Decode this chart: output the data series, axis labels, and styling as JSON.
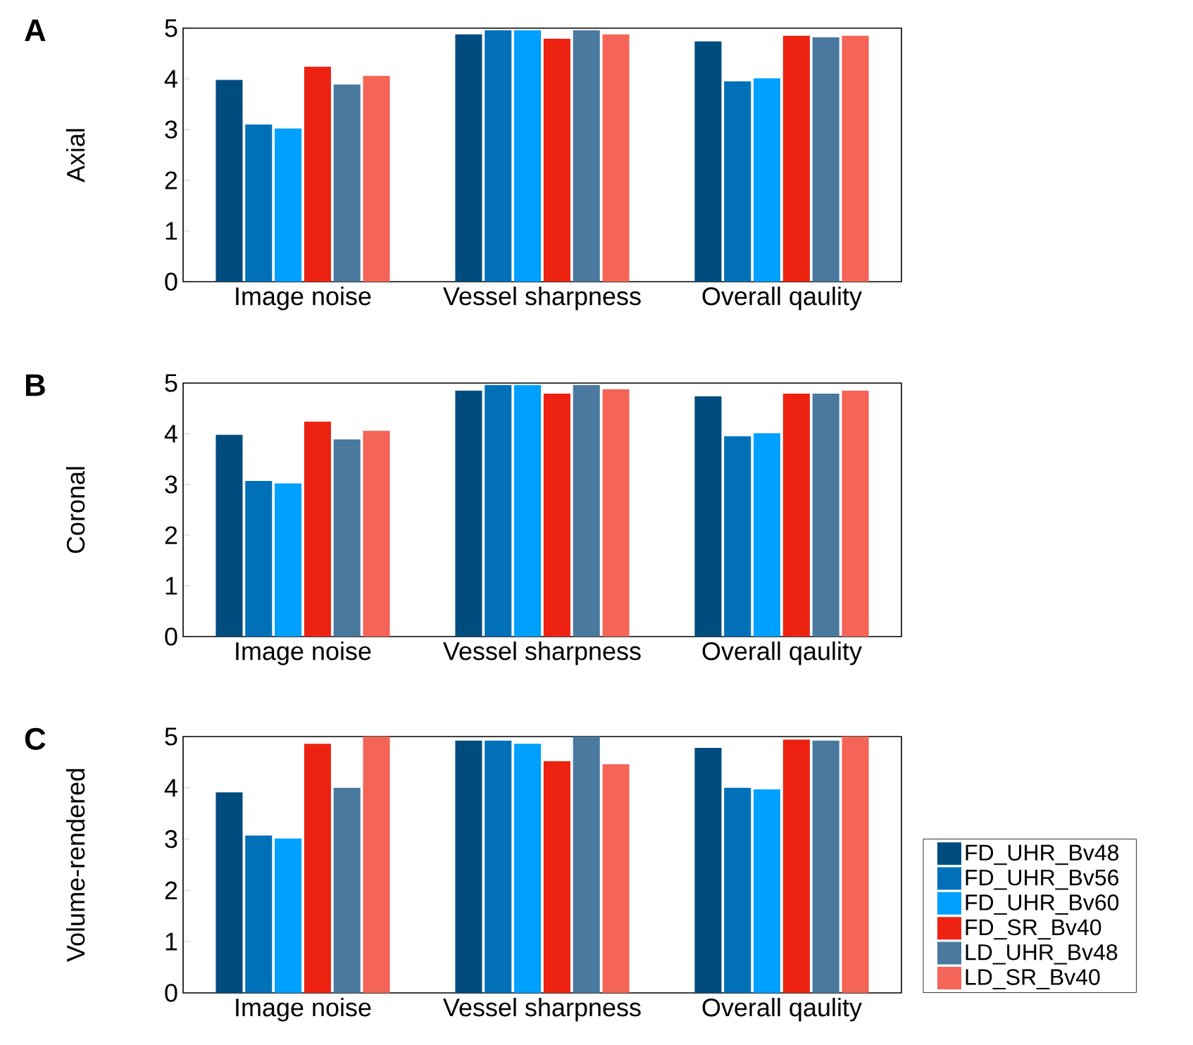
{
  "chart_data": [
    {
      "type": "bar",
      "title": "A",
      "ylabel": "Axial",
      "categories": [
        "Image noise",
        "Vessel sharpness",
        "Overall qaulity"
      ],
      "ylim": [
        0,
        5
      ],
      "yticks": [
        0,
        1,
        2,
        3,
        4,
        5
      ],
      "legend": false,
      "series": [
        {
          "color": "#004c7f",
          "values": [
            3.98,
            4.88,
            4.74
          ]
        },
        {
          "color": "#0071b8",
          "values": [
            3.1,
            4.96,
            3.95
          ]
        },
        {
          "color": "#00a0ff",
          "values": [
            3.02,
            4.96,
            4.01
          ]
        },
        {
          "color": "#ee2211",
          "values": [
            4.24,
            4.79,
            4.85
          ]
        },
        {
          "color": "#4a79a0",
          "values": [
            3.89,
            4.96,
            4.82
          ]
        },
        {
          "color": "#f46558",
          "values": [
            4.06,
            4.88,
            4.85
          ]
        }
      ]
    },
    {
      "type": "bar",
      "title": "B",
      "ylabel": "Coronal",
      "categories": [
        "Image noise",
        "Vessel sharpness",
        "Overall qaulity"
      ],
      "ylim": [
        0,
        5
      ],
      "yticks": [
        0,
        1,
        2,
        3,
        4,
        5
      ],
      "legend": false,
      "series": [
        {
          "color": "#004c7f",
          "values": [
            3.98,
            4.85,
            4.74
          ]
        },
        {
          "color": "#0071b8",
          "values": [
            3.07,
            4.96,
            3.95
          ]
        },
        {
          "color": "#00a0ff",
          "values": [
            3.02,
            4.96,
            4.01
          ]
        },
        {
          "color": "#ee2211",
          "values": [
            4.24,
            4.79,
            4.79
          ]
        },
        {
          "color": "#4a79a0",
          "values": [
            3.89,
            4.96,
            4.79
          ]
        },
        {
          "color": "#f46558",
          "values": [
            4.06,
            4.88,
            4.85
          ]
        }
      ]
    },
    {
      "type": "bar",
      "title": "C",
      "ylabel": "Volume-rendered",
      "categories": [
        "Image noise",
        "Vessel sharpness",
        "Overall qaulity"
      ],
      "ylim": [
        0,
        5
      ],
      "yticks": [
        0,
        1,
        2,
        3,
        4,
        5
      ],
      "legend": "right",
      "series": [
        {
          "name": "FD_UHR_Bv48",
          "color": "#004c7f",
          "values": [
            3.91,
            4.92,
            4.78
          ]
        },
        {
          "name": "FD_UHR_Bv56",
          "color": "#0071b8",
          "values": [
            3.07,
            4.92,
            4.0
          ]
        },
        {
          "name": "FD_UHR_Bv60",
          "color": "#00a0ff",
          "values": [
            3.01,
            4.86,
            3.97
          ]
        },
        {
          "name": "FD_SR_Bv40",
          "color": "#ee2211",
          "values": [
            4.86,
            4.52,
            4.94
          ]
        },
        {
          "name": "LD_UHR_Bv48",
          "color": "#4a79a0",
          "values": [
            4.0,
            5.0,
            4.92
          ]
        },
        {
          "name": "LD_SR_Bv40",
          "color": "#f46558",
          "values": [
            5.0,
            4.46,
            5.0
          ]
        }
      ]
    }
  ]
}
